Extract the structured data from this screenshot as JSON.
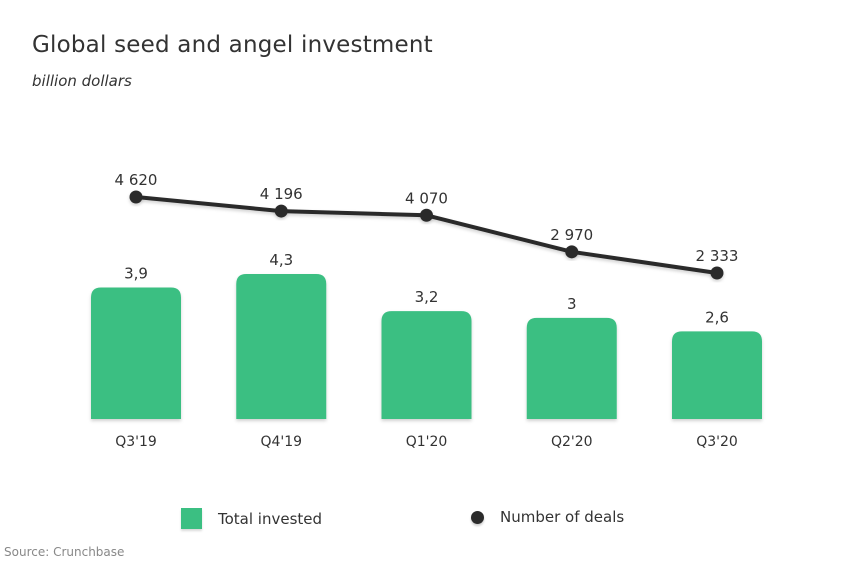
{
  "chart_data": {
    "type": "bar",
    "title": "Global seed and angel investment",
    "subtitle": "billion dollars",
    "categories": [
      "Q3'19",
      "Q4'19",
      "Q1'20",
      "Q2'20",
      "Q3'20"
    ],
    "series": [
      {
        "name": "Total invested",
        "type": "bar",
        "values": [
          3.9,
          4.3,
          3.2,
          3.0,
          2.6
        ],
        "labels": [
          "3,9",
          "4,3",
          "3,2",
          "3",
          "2,6"
        ],
        "color": "#3BBF82",
        "ylim": [
          0,
          4.3
        ]
      },
      {
        "name": "Number of deals",
        "type": "line",
        "values": [
          4620,
          4196,
          4070,
          2970,
          2333
        ],
        "labels": [
          "4 620",
          "4 196",
          "4 070",
          "2 970",
          "2 333"
        ],
        "color": "#2B2B2B"
      }
    ],
    "xlabel": "",
    "ylabel": "",
    "grid": false,
    "legend": "bottom",
    "source": "Source: Crunchbase"
  }
}
